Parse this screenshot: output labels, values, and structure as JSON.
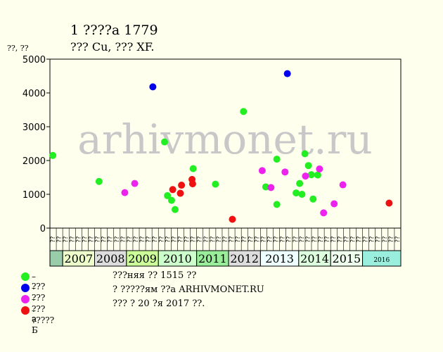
{
  "page": {
    "title": "1 ????а 1779",
    "subtitle": "??? Cu, ??? XF.",
    "y_unit": "??, ??",
    "watermark": "arhivmonet.ru"
  },
  "legend": [
    {
      "label": "– ???",
      "color": "#22ee22"
    },
    {
      "label": "– ???",
      "color": "#0000ee"
    },
    {
      "label": "– ???а",
      "color": "#ee22ee"
    },
    {
      "label": "– ?????Б",
      "color": "#ee1111"
    }
  ],
  "notes": [
    "???няя ?? 1515 ??",
    "? ?????ям ??а ARHIVMONET.RU",
    "??? ? 20 ?я 2017 ??."
  ],
  "chart_data": {
    "type": "scatter",
    "title": "1 ????а 1779",
    "subtitle": "??? Cu, ??? XF.",
    "ylabel": "??, ??",
    "ylim": [
      0,
      5000
    ],
    "yticks": [
      0,
      1000,
      2000,
      3000,
      4000,
      5000
    ],
    "grid": false,
    "x_sub_labels": [
      "??",
      "??",
      "??",
      "??",
      "??",
      "??",
      "??",
      "??",
      "??",
      "??",
      "??",
      "??",
      "??",
      "??",
      "??",
      "??",
      "??",
      "??",
      "??",
      "??",
      "??",
      "??",
      "??",
      "??",
      "??",
      "??",
      "??",
      "??",
      "??",
      "??",
      "??",
      "??",
      "??",
      "??",
      "??",
      "??",
      "??",
      "??",
      "??",
      "??",
      "??",
      "??",
      "??",
      "??",
      "??",
      "??",
      "??",
      "??",
      "??",
      "??",
      "??",
      "??",
      "??",
      "??",
      "??"
    ],
    "years": [
      {
        "label": "",
        "start": 0,
        "end": 2,
        "color": "#99ccaa"
      },
      {
        "label": "2007",
        "start": 2,
        "end": 7,
        "color": "#eeffcc"
      },
      {
        "label": "2008",
        "start": 7,
        "end": 12,
        "color": "#dddddd"
      },
      {
        "label": "2009",
        "start": 12,
        "end": 17,
        "color": "#ccff99"
      },
      {
        "label": "2010",
        "start": 17,
        "end": 23,
        "color": "#ccffcc"
      },
      {
        "label": "2011",
        "start": 23,
        "end": 28,
        "color": "#99ee99"
      },
      {
        "label": "2012",
        "start": 28,
        "end": 33,
        "color": "#dddddd"
      },
      {
        "label": "2013",
        "start": 33,
        "end": 39,
        "color": "#eeffff"
      },
      {
        "label": "2014",
        "start": 39,
        "end": 44,
        "color": "#ddffdd"
      },
      {
        "label": "2015",
        "start": 44,
        "end": 49,
        "color": "#eeffee"
      },
      {
        "label": "2016",
        "start": 49,
        "end": 55,
        "color": "#99eedd"
      }
    ],
    "series": [
      {
        "color": "#22ee22",
        "points": [
          {
            "x": 0.5,
            "y": 2150
          },
          {
            "x": 8.4,
            "y": 1380
          },
          {
            "x": 19.6,
            "y": 2550
          },
          {
            "x": 20.1,
            "y": 960
          },
          {
            "x": 20.8,
            "y": 820
          },
          {
            "x": 21.4,
            "y": 550
          },
          {
            "x": 24.5,
            "y": 1760
          },
          {
            "x": 28.3,
            "y": 1300
          },
          {
            "x": 33.1,
            "y": 3450
          },
          {
            "x": 36.9,
            "y": 1220
          },
          {
            "x": 38.8,
            "y": 2040
          },
          {
            "x": 38.8,
            "y": 700
          },
          {
            "x": 42.1,
            "y": 1040
          },
          {
            "x": 42.7,
            "y": 1320
          },
          {
            "x": 43.1,
            "y": 1000
          },
          {
            "x": 43.6,
            "y": 2200
          },
          {
            "x": 44.2,
            "y": 1850
          },
          {
            "x": 44.7,
            "y": 1580
          },
          {
            "x": 45.0,
            "y": 860
          },
          {
            "x": 45.8,
            "y": 1570
          }
        ]
      },
      {
        "color": "#0000ee",
        "points": [
          {
            "x": 17.6,
            "y": 4180
          },
          {
            "x": 40.6,
            "y": 4570
          }
        ]
      },
      {
        "color": "#ee22ee",
        "points": [
          {
            "x": 12.8,
            "y": 1050
          },
          {
            "x": 14.5,
            "y": 1320
          },
          {
            "x": 36.3,
            "y": 1700
          },
          {
            "x": 37.8,
            "y": 1200
          },
          {
            "x": 40.2,
            "y": 1660
          },
          {
            "x": 43.7,
            "y": 1540
          },
          {
            "x": 46.1,
            "y": 1750
          },
          {
            "x": 46.8,
            "y": 450
          },
          {
            "x": 48.6,
            "y": 720
          },
          {
            "x": 50.1,
            "y": 1280
          }
        ]
      },
      {
        "color": "#ee1111",
        "points": [
          {
            "x": 21.0,
            "y": 1140
          },
          {
            "x": 22.3,
            "y": 1030
          },
          {
            "x": 22.5,
            "y": 1270
          },
          {
            "x": 24.3,
            "y": 1440
          },
          {
            "x": 24.4,
            "y": 1310
          },
          {
            "x": 31.2,
            "y": 260
          },
          {
            "x": 58.0,
            "y": 740
          }
        ]
      }
    ]
  }
}
